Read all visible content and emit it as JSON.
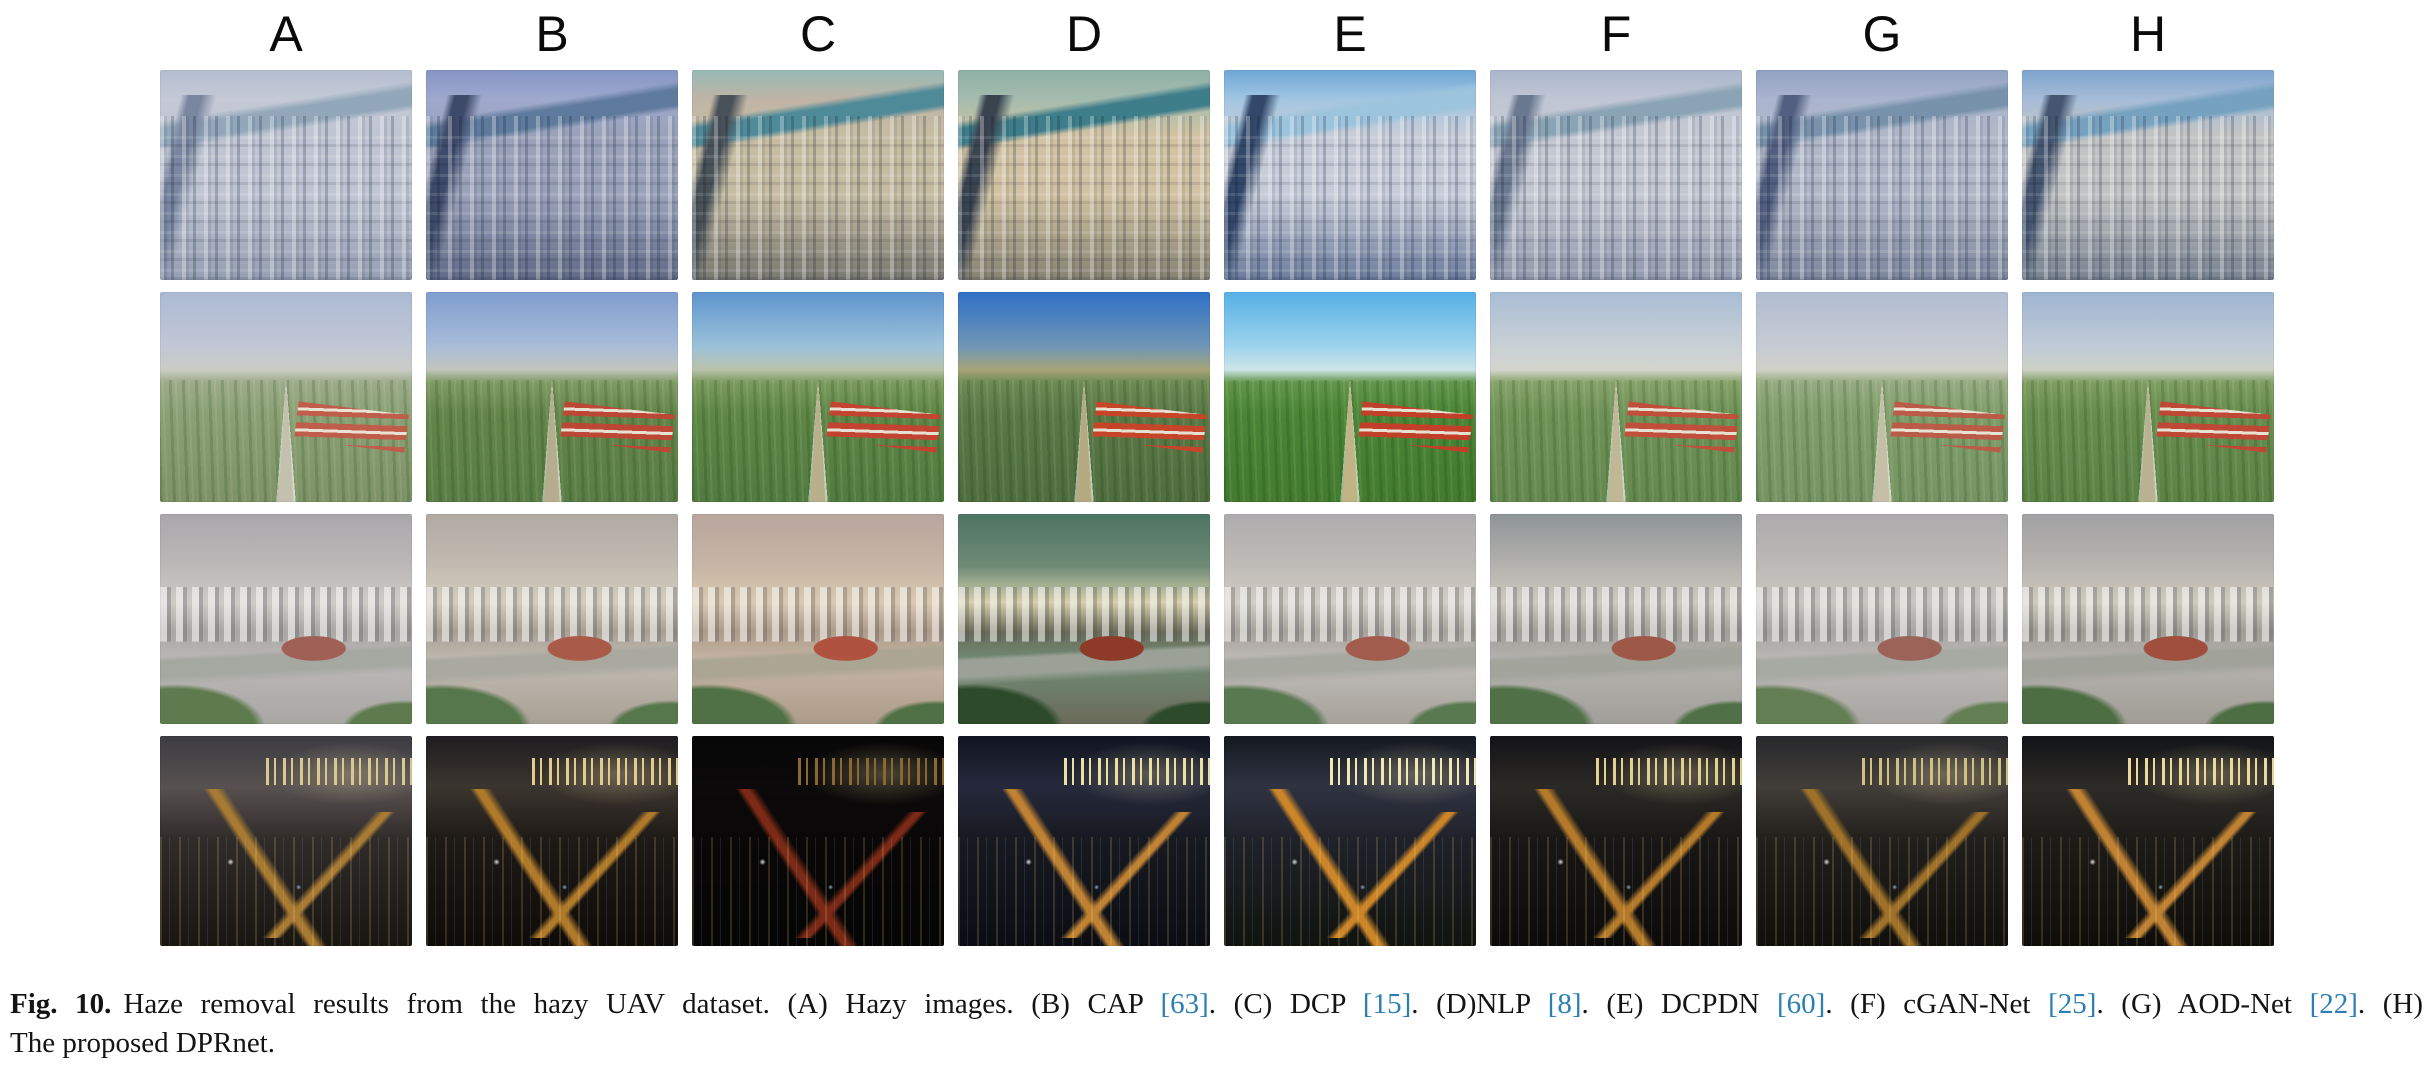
{
  "figure": {
    "column_labels": [
      "A",
      "B",
      "C",
      "D",
      "E",
      "F",
      "G",
      "H"
    ],
    "rows": [
      {
        "scene": "city",
        "description": "hazy aerial city view with river on horizon",
        "cells": [
          {
            "col": "A",
            "palette": {
              "sky": "#b4bed0",
              "skyLow": "#c5c9d6",
              "river": "#92a8ba",
              "cityLight": "#bfc5d2",
              "cityDark": "#949eb2",
              "shadow": "#7a86a0"
            }
          },
          {
            "col": "B",
            "palette": {
              "sky": "#8494c2",
              "skyLow": "#9fa9ce",
              "river": "#5e7a9c",
              "cityLight": "#9aa2ba",
              "cityDark": "#606a86",
              "shadow": "#3e4a6a"
            }
          },
          {
            "col": "C",
            "palette": {
              "sky": "#96bab4",
              "skyLow": "#c0b4a6",
              "river": "#4e8a98",
              "cityLight": "#c6bca2",
              "cityDark": "#787870",
              "shadow": "#485258"
            }
          },
          {
            "col": "D",
            "palette": {
              "sky": "#90b0a6",
              "skyLow": "#a4bcae",
              "river": "#3e7e8a",
              "cityLight": "#d0c2a2",
              "cityDark": "#868272",
              "shadow": "#3a4450"
            }
          },
          {
            "col": "E",
            "palette": {
              "sky": "#6ea6d6",
              "skyLow": "#a2c6e2",
              "river": "#9cc4dc",
              "cityLight": "#c6ccd8",
              "cityDark": "#6c7c9c",
              "shadow": "#32486a"
            }
          },
          {
            "col": "F",
            "palette": {
              "sky": "#aab6cc",
              "skyLow": "#c0c6d4",
              "river": "#8aa4b6",
              "cityLight": "#c4c8d2",
              "cityDark": "#9098ac",
              "shadow": "#6a7890"
            }
          },
          {
            "col": "G",
            "palette": {
              "sky": "#92a2c2",
              "skyLow": "#aab4ce",
              "river": "#7892ac",
              "cityLight": "#b0b8c8",
              "cityDark": "#7c869c",
              "shadow": "#525f80"
            }
          },
          {
            "col": "H",
            "palette": {
              "sky": "#7ea4ce",
              "skyLow": "#a6bcd8",
              "river": "#76a2c0",
              "cityLight": "#c2c4c4",
              "cityDark": "#788290",
              "shadow": "#455670"
            }
          }
        ]
      },
      {
        "scene": "field",
        "description": "aerial green fields with railway to horizon and red-roofed warehouses",
        "cells": [
          {
            "col": "A",
            "palette": {
              "sky": "#abbad4",
              "skyLow": "#c1c7d5",
              "haze": "#cbccc6",
              "fieldFar": "#9cab8a",
              "field": "#8ba174",
              "fieldNear": "#7d9366",
              "road": "#c3c0ae",
              "roof": "#c25a48"
            }
          },
          {
            "col": "B",
            "palette": {
              "sky": "#7e9ed0",
              "skyLow": "#a9bcd8",
              "haze": "#c3c5bc",
              "fieldFar": "#7f9b64",
              "field": "#63854a",
              "fieldNear": "#597d44",
              "road": "#b5ad8d",
              "roof": "#c14434"
            }
          },
          {
            "col": "C",
            "palette": {
              "sky": "#5e94ce",
              "skyLow": "#9cc2da",
              "haze": "#bac2aa",
              "fieldFar": "#7a9a5e",
              "field": "#5e8646",
              "fieldNear": "#537b40",
              "road": "#b9af8b",
              "roof": "#c84030"
            }
          },
          {
            "col": "D",
            "palette": {
              "sky": "#2f70c6",
              "skyLow": "#6f96b6",
              "haze": "#a8a478",
              "fieldFar": "#6e8a54",
              "field": "#5b7947",
              "fieldNear": "#4f6d3d",
              "road": "#b5a97f",
              "roof": "#cc4226"
            }
          },
          {
            "col": "E",
            "palette": {
              "sky": "#55b0e6",
              "skyLow": "#9dd3ed",
              "haze": "#cde5e9",
              "fieldFar": "#62964c",
              "field": "#4b8535",
              "fieldNear": "#437b2f",
              "road": "#c1b385",
              "roof": "#c83c28"
            }
          },
          {
            "col": "F",
            "palette": {
              "sky": "#a9bdd5",
              "skyLow": "#c9d1d5",
              "haze": "#d5d5cd",
              "fieldFar": "#86a26a",
              "field": "#6e9256",
              "fieldNear": "#64884e",
              "road": "#bfb795",
              "roof": "#c44c3a"
            }
          },
          {
            "col": "G",
            "palette": {
              "sky": "#b1bdd1",
              "skyLow": "#c7cbd3",
              "haze": "#d1d1c9",
              "fieldFar": "#96aa80",
              "field": "#809e6a",
              "fieldNear": "#769462",
              "road": "#c5bfa5",
              "roof": "#bd5846"
            }
          },
          {
            "col": "H",
            "palette": {
              "sky": "#9eb5d1",
              "skyLow": "#c0cbd7",
              "haze": "#cdd1c5",
              "fieldFar": "#7e9e62",
              "field": "#668c4e",
              "fieldNear": "#5c8246",
              "road": "#b9b18f",
              "roof": "#c44434"
            }
          }
        ]
      },
      {
        "scene": "suburb",
        "description": "hazy aerial suburb with apartment rows, red-roofed hall and foreground trees",
        "cells": [
          {
            "col": "A",
            "palette": {
              "hazeTop": "#aaa7ab",
              "hazeMid": "#bbb8b8",
              "bldgLight": "#cecbc5",
              "bldgShade": "#a9a7a3",
              "road": "#a5a7a1",
              "tree": "#5e7b4d",
              "roof": "#a06055"
            }
          },
          {
            "col": "B",
            "palette": {
              "hazeTop": "#b1a9a3",
              "hazeMid": "#c1bbb1",
              "bldgLight": "#d3cdbf",
              "bldgShade": "#a9a095",
              "road": "#a9a99f",
              "tree": "#56774b",
              "roof": "#aa5a48"
            }
          },
          {
            "col": "C",
            "palette": {
              "hazeTop": "#b9a59d",
              "hazeMid": "#c7b5a5",
              "bldgLight": "#d9c9af",
              "bldgShade": "#ac9c89",
              "road": "#aba593",
              "tree": "#4f7145",
              "roof": "#b05240"
            }
          },
          {
            "col": "D",
            "palette": {
              "hazeTop": "#4c7464",
              "hazeMid": "#6f8b75",
              "bldgLight": "#d7cfad",
              "bldgShade": "#6b6b59",
              "road": "#9ba197",
              "tree": "#2d4b2b",
              "roof": "#8e3a28"
            }
          },
          {
            "col": "E",
            "palette": {
              "hazeTop": "#aeacae",
              "hazeMid": "#bfbbb7",
              "bldgLight": "#d1cdc3",
              "bldgShade": "#a7a39b",
              "road": "#a7a9a1",
              "tree": "#597951",
              "roof": "#a25c4e"
            }
          },
          {
            "col": "F",
            "palette": {
              "hazeTop": "#8e9496",
              "hazeMid": "#b5b3af",
              "bldgLight": "#cdc9bf",
              "bldgShade": "#a19f99",
              "road": "#a3a59d",
              "tree": "#507147",
              "roof": "#9e5848"
            }
          },
          {
            "col": "G",
            "palette": {
              "hazeTop": "#acaaac",
              "hazeMid": "#bdb9b7",
              "bldgLight": "#cac7c1",
              "bldgShade": "#a7a5a1",
              "road": "#a7a9a3",
              "tree": "#657f55",
              "roof": "#9c6458"
            }
          },
          {
            "col": "H",
            "palette": {
              "hazeTop": "#a2a2a4",
              "hazeMid": "#b7b3af",
              "bldgLight": "#cfcbbf",
              "bldgShade": "#9f9d95",
              "road": "#a1a39b",
              "tree": "#4d6d43",
              "roof": "#a04e3e"
            }
          }
        ]
      },
      {
        "scene": "night",
        "description": "night aerial cityscape with lit towers and orange roads",
        "cells": [
          {
            "col": "A",
            "palette": {
              "sky": "#3c3c42",
              "skyLow": "#575150",
              "city": "#2f2b29",
              "ground": "#191511",
              "light": "#d9c991",
              "road": "#a87a32"
            }
          },
          {
            "col": "B",
            "palette": {
              "sky": "#1f1d21",
              "skyLow": "#3b352f",
              "city": "#1d1915",
              "ground": "#0f0b09",
              "light": "#e1cd89",
              "road": "#b07a2a"
            }
          },
          {
            "col": "C",
            "palette": {
              "sky": "#070707",
              "skyLow": "#0b0909",
              "city": "#090707",
              "ground": "#050505",
              "light": "#8a6830",
              "road": "#7c2a16"
            }
          },
          {
            "col": "D",
            "palette": {
              "sky": "#111520",
              "skyLow": "#25293b",
              "city": "#171920",
              "ground": "#0b0d13",
              "light": "#e9e1a1",
              "road": "#c08232"
            }
          },
          {
            "col": "E",
            "palette": {
              "sky": "#151920",
              "skyLow": "#2f3341",
              "city": "#1f2129",
              "ground": "#11130f",
              "light": "#f1e9b1",
              "road": "#cc8628"
            }
          },
          {
            "col": "F",
            "palette": {
              "sky": "#131317",
              "skyLow": "#2b2925",
              "city": "#191715",
              "ground": "#0d0b09",
              "light": "#e1d191",
              "road": "#b47a2a"
            }
          },
          {
            "col": "G",
            "palette": {
              "sky": "#28292d",
              "skyLow": "#413d39",
              "city": "#211f1b",
              "ground": "#110f0b",
              "light": "#d1c181",
              "road": "#a07229"
            }
          },
          {
            "col": "H",
            "palette": {
              "sky": "#111317",
              "skyLow": "#2d2b27",
              "city": "#1d1b17",
              "ground": "#0f0d09",
              "light": "#edd999",
              "road": "#c08232"
            }
          }
        ]
      }
    ]
  },
  "caption": {
    "label": "Fig. 10.",
    "line1_segments": [
      {
        "type": "text",
        "text": "Haze removal results from the hazy UAV dataset. (A) Hazy images. (B) CAP "
      },
      {
        "type": "ref",
        "text": "[63]"
      },
      {
        "type": "text",
        "text": ". (C) DCP "
      },
      {
        "type": "ref",
        "text": "[15]"
      },
      {
        "type": "text",
        "text": ". (D)NLP "
      },
      {
        "type": "ref",
        "text": "[8]"
      },
      {
        "type": "text",
        "text": ". (E) DCPDN "
      },
      {
        "type": "ref",
        "text": "[60]"
      },
      {
        "type": "text",
        "text": ". (F) cGAN-Net "
      },
      {
        "type": "ref",
        "text": "[25]"
      },
      {
        "type": "text",
        "text": ". (G) AOD-Net "
      },
      {
        "type": "ref",
        "text": "[22]"
      },
      {
        "type": "text",
        "text": ". (H)"
      }
    ],
    "line2": "The proposed DPRnet.",
    "ref_color": "#2b7fb4",
    "text_color": "#141414"
  }
}
